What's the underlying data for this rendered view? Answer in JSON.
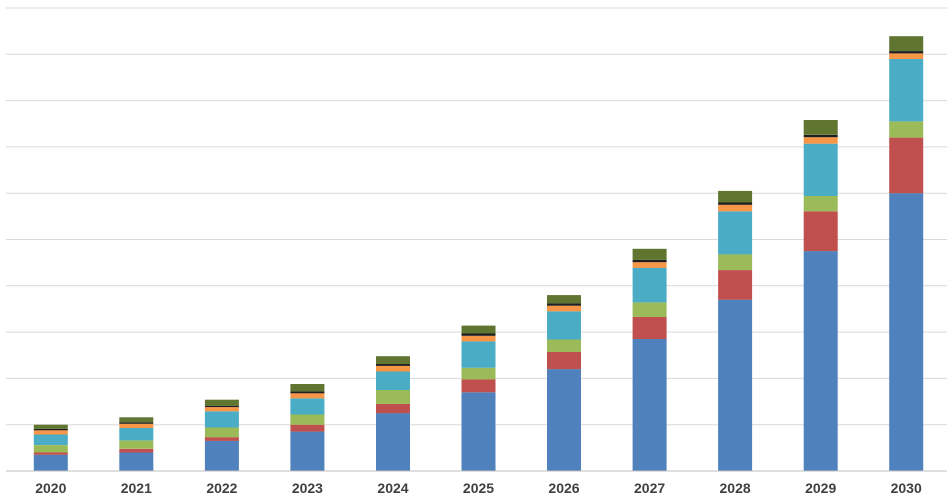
{
  "chart_data": {
    "type": "bar",
    "stacked": true,
    "grid": true,
    "legend": "none",
    "title": "",
    "xlabel": "",
    "ylabel": "",
    "ylim": [
      0,
      100
    ],
    "categories": [
      "2020",
      "2021",
      "2022",
      "2023",
      "2024",
      "2025",
      "2026",
      "2027",
      "2028",
      "2029",
      "2030"
    ],
    "series": [
      {
        "color": "#4f81bd",
        "values": [
          3.5,
          4,
          6.5,
          8.5,
          12.5,
          17,
          22,
          28.5,
          37,
          47.5,
          60
        ]
      },
      {
        "color": "#c0504d",
        "values": [
          0.5,
          0.8,
          0.8,
          1.5,
          2,
          2.8,
          3.7,
          4.8,
          6.4,
          8.6,
          12
        ]
      },
      {
        "color": "#9bbb59",
        "values": [
          1.6,
          1.8,
          2.1,
          2.2,
          3,
          2.5,
          2.7,
          3.1,
          3.4,
          3.3,
          3.5
        ]
      },
      {
        "color": "#4bacc6",
        "values": [
          2.3,
          2.7,
          3.5,
          3.5,
          4,
          5.7,
          6.1,
          7.5,
          9.3,
          11.3,
          13.5
        ]
      },
      {
        "color": "#f79646",
        "values": [
          0.9,
          0.9,
          0.9,
          1.1,
          1.2,
          1.2,
          1.2,
          1.2,
          1.4,
          1.4,
          1.2
        ]
      },
      {
        "color": "#1f1f1f",
        "values": [
          0.3,
          0.3,
          0.3,
          0.4,
          0.4,
          0.5,
          0.5,
          0.5,
          0.5,
          0.5,
          0.5
        ]
      },
      {
        "color": "#5f7530",
        "values": [
          0.9,
          1.1,
          1.3,
          1.6,
          1.7,
          1.7,
          1.8,
          2.4,
          2.5,
          3.2,
          3.2
        ]
      }
    ]
  }
}
